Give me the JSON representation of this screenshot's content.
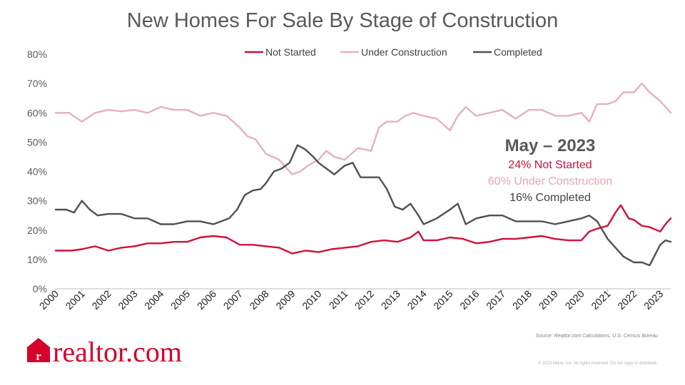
{
  "chart_data": {
    "type": "line",
    "title": "New Homes For Sale By Stage of Construction",
    "ylim": [
      0,
      80
    ],
    "xlim": [
      2000,
      2023.4
    ],
    "y_ticks": [
      "0%",
      "10%",
      "20%",
      "30%",
      "40%",
      "50%",
      "60%",
      "70%",
      "80%"
    ],
    "x_ticks": [
      "2000",
      "2001",
      "2002",
      "2003",
      "2004",
      "2005",
      "2006",
      "2007",
      "2008",
      "2009",
      "2010",
      "2011",
      "2012",
      "2013",
      "2014",
      "2015",
      "2016",
      "2017",
      "2018",
      "2019",
      "2020",
      "2021",
      "2022",
      "2023"
    ],
    "grid": false,
    "legend_position": "top",
    "series": [
      {
        "name": "Not Started",
        "color": "#d0103a",
        "x": [
          2000,
          2000.3,
          2000.6,
          2001,
          2001.5,
          2002,
          2002.5,
          2003,
          2003.5,
          2004,
          2004.5,
          2005,
          2005.5,
          2006,
          2006.5,
          2007,
          2007.5,
          2008,
          2008.5,
          2009,
          2009.5,
          2010,
          2010.5,
          2011,
          2011.5,
          2012,
          2012.5,
          2013,
          2013.5,
          2013.8,
          2014,
          2014.5,
          2015,
          2015.5,
          2016,
          2016.5,
          2017,
          2017.5,
          2018,
          2018.5,
          2019,
          2019.5,
          2020,
          2020.3,
          2020.6,
          2021,
          2021.3,
          2021.5,
          2021.8,
          2022,
          2022.3,
          2022.6,
          2023,
          2023.2,
          2023.4
        ],
        "values": [
          13,
          13,
          13,
          13.5,
          14.5,
          13,
          14,
          14.5,
          15.5,
          15.5,
          16,
          16,
          17.5,
          18,
          17.5,
          15,
          15,
          14.5,
          14,
          12,
          13,
          12.5,
          13.5,
          14,
          14.5,
          16,
          16.5,
          16,
          17.5,
          19.5,
          16.5,
          16.5,
          17.5,
          17,
          15.5,
          16,
          17,
          17,
          17.5,
          18,
          17,
          16.5,
          16.5,
          19.5,
          20.5,
          21.5,
          26,
          28.5,
          24,
          23.5,
          21.5,
          21,
          19.5,
          22,
          24
        ]
      },
      {
        "name": "Under Construction",
        "color": "#e8b0b8",
        "x": [
          2000,
          2000.5,
          2001,
          2001.5,
          2002,
          2002.5,
          2003,
          2003.5,
          2004,
          2004.5,
          2005,
          2005.5,
          2006,
          2006.5,
          2007,
          2007.3,
          2007.6,
          2008,
          2008.5,
          2009,
          2009.3,
          2009.6,
          2010,
          2010.3,
          2010.6,
          2011,
          2011.5,
          2012,
          2012.3,
          2012.6,
          2013,
          2013.3,
          2013.6,
          2014,
          2014.5,
          2015,
          2015.3,
          2015.6,
          2016,
          2016.5,
          2017,
          2017.5,
          2018,
          2018.5,
          2019,
          2019.5,
          2020,
          2020.3,
          2020.6,
          2021,
          2021.3,
          2021.6,
          2022,
          2022.3,
          2022.6,
          2023,
          2023.2,
          2023.4
        ],
        "values": [
          60,
          60,
          57,
          60,
          61,
          60.5,
          61,
          60,
          62,
          61,
          61,
          59,
          60,
          59,
          55,
          52,
          51,
          46,
          44,
          39,
          40,
          42,
          44,
          47,
          45,
          44,
          48,
          47,
          55,
          57,
          57,
          59,
          60,
          59,
          58,
          54,
          59,
          62,
          59,
          60,
          61,
          58,
          61,
          61,
          59,
          59,
          60,
          57,
          63,
          63,
          64,
          67,
          67,
          70,
          67,
          64,
          62,
          60
        ]
      },
      {
        "name": "Completed",
        "color": "#505050",
        "x": [
          2000,
          2000.4,
          2000.7,
          2001,
          2001.3,
          2001.6,
          2002,
          2002.5,
          2003,
          2003.5,
          2004,
          2004.5,
          2005,
          2005.5,
          2006,
          2006.3,
          2006.6,
          2006.9,
          2007.2,
          2007.5,
          2007.8,
          2008,
          2008.3,
          2008.6,
          2008.9,
          2009.2,
          2009.5,
          2009.8,
          2010,
          2010.3,
          2010.6,
          2011,
          2011.3,
          2011.6,
          2012,
          2012.3,
          2012.6,
          2012.9,
          2013.2,
          2013.5,
          2013.8,
          2014,
          2014.5,
          2015,
          2015.3,
          2015.6,
          2016,
          2016.5,
          2017,
          2017.5,
          2018,
          2018.5,
          2019,
          2019.5,
          2020,
          2020.3,
          2020.6,
          2021,
          2021.3,
          2021.6,
          2022,
          2022.3,
          2022.6,
          2023,
          2023.2,
          2023.4
        ],
        "values": [
          27,
          27,
          26,
          30,
          27,
          25,
          25.5,
          25.5,
          24,
          24,
          22,
          22,
          23,
          23,
          22,
          23,
          24,
          27,
          32,
          33.5,
          34,
          36,
          40,
          41,
          43,
          49,
          47.5,
          45,
          43,
          41,
          39,
          42,
          43,
          38,
          38,
          38,
          34,
          28,
          27,
          29,
          25,
          22,
          24,
          27,
          29,
          22,
          24,
          25,
          25,
          23,
          23,
          23,
          22,
          23,
          24,
          25,
          23,
          17,
          14,
          11,
          9,
          9,
          8,
          15,
          16.5,
          16
        ]
      }
    ]
  },
  "annotation": {
    "heading": "May – 2023",
    "lines": [
      {
        "text": "24% Not Started",
        "color": "#d0103a"
      },
      {
        "text": "60% Under Construction",
        "color": "#e8a5ad"
      },
      {
        "text": "16% Completed",
        "color": "#404040"
      }
    ]
  },
  "source": "Source:  Realtor.com  Calculations,  U.S. Census  Bureau",
  "copyright": "© 2023 Move, Inc. All rights reserved. Do not copy or distribute.",
  "logo": {
    "text": "realtor.com",
    "mark": "r",
    "color": "#d6002a"
  }
}
